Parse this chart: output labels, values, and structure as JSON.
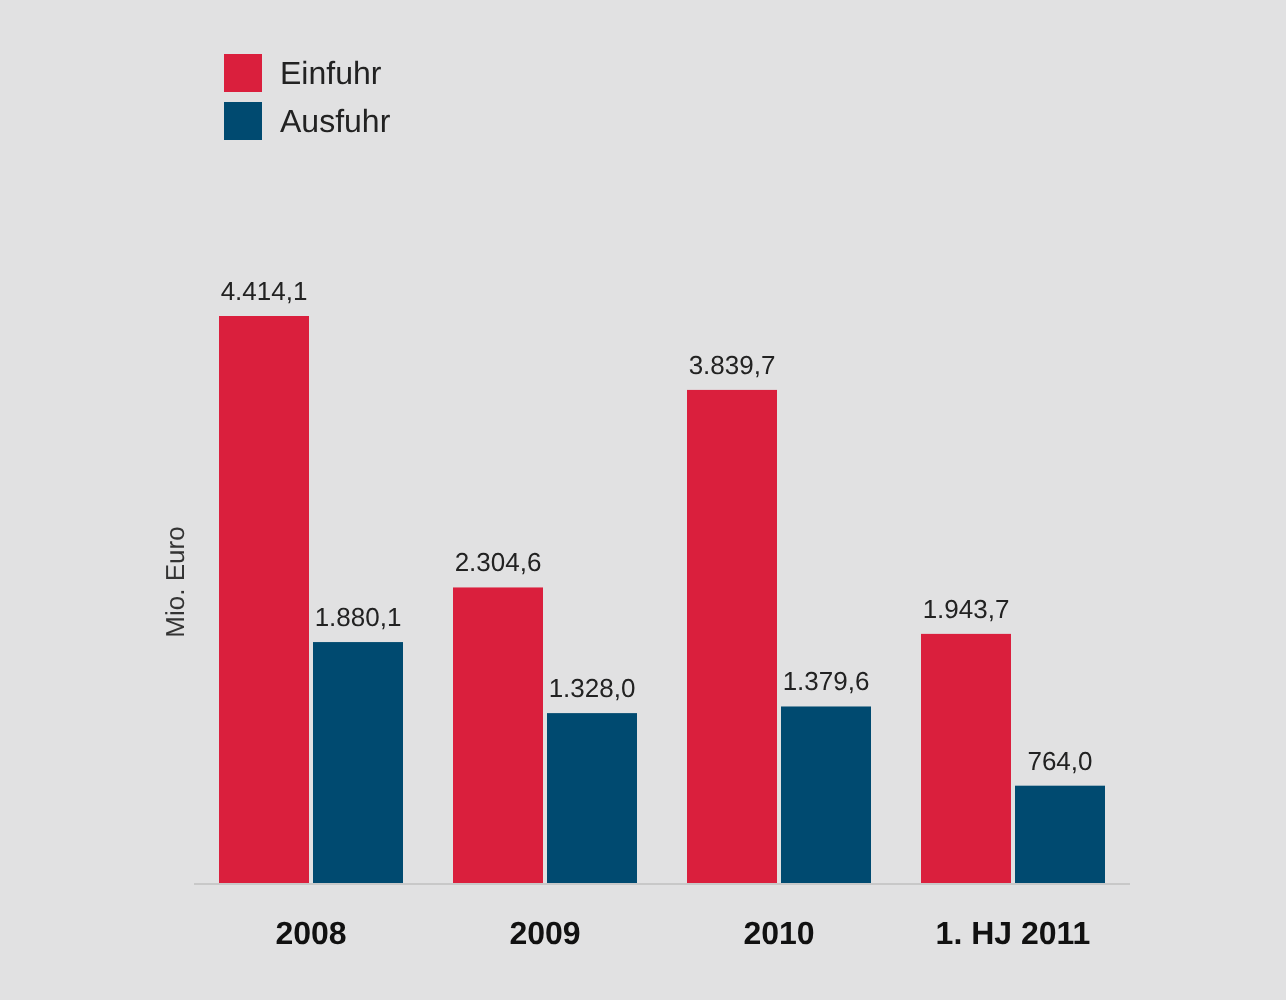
{
  "chart_data": {
    "type": "bar",
    "ylabel": "Mio. Euro",
    "categories": [
      "2008",
      "2009",
      "2010",
      "1. HJ 2011"
    ],
    "series": [
      {
        "name": "Einfuhr",
        "color": "#da1f3d",
        "values": [
          4414.1,
          2304.6,
          3839.7,
          1943.7
        ],
        "value_labels": [
          "4.414,1",
          "2.304,6",
          "3.839,7",
          "1.943,7"
        ]
      },
      {
        "name": "Ausfuhr",
        "color": "#004a70",
        "values": [
          1880.1,
          1328.0,
          1379.6,
          764.0
        ],
        "value_labels": [
          "1.880,1",
          "1.328,0",
          "1.379,6",
          "764,0"
        ]
      }
    ],
    "legend": "top left",
    "tick_labels": "x"
  }
}
